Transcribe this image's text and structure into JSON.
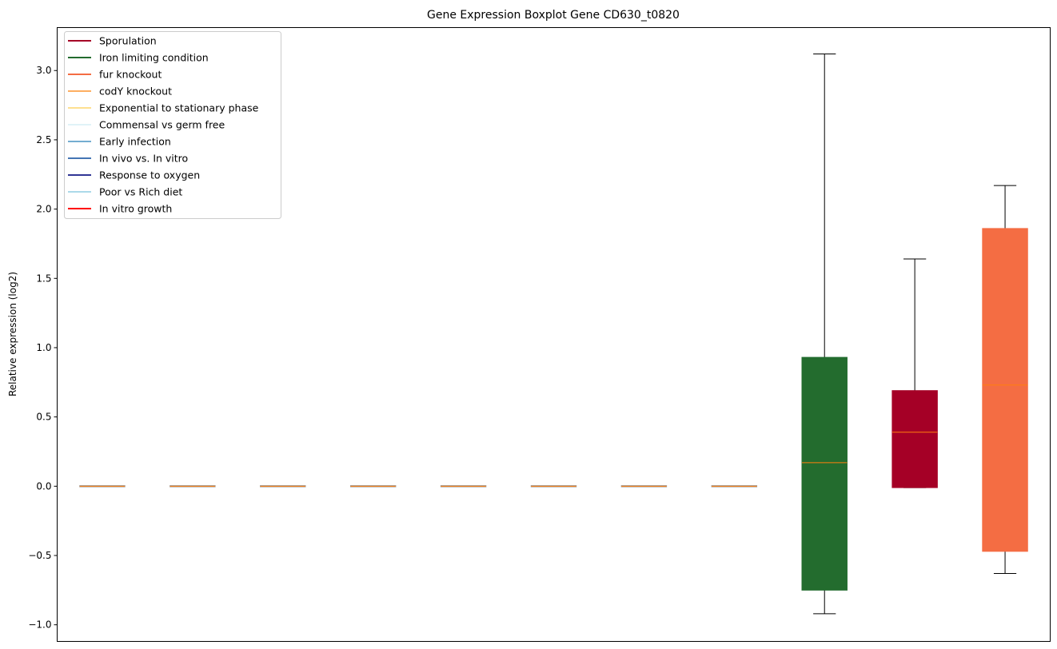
{
  "chart_data": {
    "type": "boxplot",
    "title": "Gene Expression Boxplot Gene CD630_t0820",
    "xlabel": "",
    "ylabel": "Relative expression (log2)",
    "ylim": [
      -1.12,
      3.31
    ],
    "yticks": [
      -1.0,
      -0.5,
      0.0,
      0.5,
      1.0,
      1.5,
      2.0,
      2.5,
      3.0
    ],
    "ytick_labels": [
      "−1.0",
      "−0.5",
      "0.0",
      "0.5",
      "1.0",
      "1.5",
      "2.0",
      "2.5",
      "3.0"
    ],
    "grid": false,
    "legend_placement": "top-left",
    "legend": [
      {
        "label": "Sporulation",
        "color": "#a50026"
      },
      {
        "label": "Iron limiting condition",
        "color": "#236c2e"
      },
      {
        "label": "fur knockout",
        "color": "#f46d43"
      },
      {
        "label": "codY knockout",
        "color": "#fdae61"
      },
      {
        "label": "Exponential to stationary phase",
        "color": "#fee090"
      },
      {
        "label": "Commensal vs germ free",
        "color": "#e0f3f8"
      },
      {
        "label": "Early infection",
        "color": "#74add1"
      },
      {
        "label": "In vivo vs. In vitro",
        "color": "#4575b4"
      },
      {
        "label": "Response to oxygen",
        "color": "#313695"
      },
      {
        "label": "Poor vs Rich diet",
        "color": "#abd9e9"
      },
      {
        "label": "In vitro growth",
        "color": "#ff0000"
      }
    ],
    "median_color": "#ff7f0e",
    "boxes": [
      {
        "position": 1,
        "whislo": 0,
        "q1": 0,
        "med": 0,
        "q3": 0,
        "whishi": 0,
        "color": "#999999"
      },
      {
        "position": 2,
        "whislo": 0,
        "q1": 0,
        "med": 0,
        "q3": 0,
        "whishi": 0,
        "color": "#999999"
      },
      {
        "position": 3,
        "whislo": 0,
        "q1": 0,
        "med": 0,
        "q3": 0,
        "whishi": 0,
        "color": "#999999"
      },
      {
        "position": 4,
        "whislo": 0,
        "q1": 0,
        "med": 0,
        "q3": 0,
        "whishi": 0,
        "color": "#999999"
      },
      {
        "position": 5,
        "whislo": 0,
        "q1": 0,
        "med": 0,
        "q3": 0,
        "whishi": 0,
        "color": "#999999"
      },
      {
        "position": 6,
        "whislo": 0,
        "q1": 0,
        "med": 0,
        "q3": 0,
        "whishi": 0,
        "color": "#999999"
      },
      {
        "position": 7,
        "whislo": 0,
        "q1": 0,
        "med": 0,
        "q3": 0,
        "whishi": 0,
        "color": "#999999"
      },
      {
        "position": 8,
        "whislo": 0,
        "q1": 0,
        "med": 0,
        "q3": 0,
        "whishi": 0,
        "color": "#999999"
      },
      {
        "position": 9,
        "whislo": -0.92,
        "q1": -0.75,
        "med": 0.17,
        "q3": 0.93,
        "whishi": 3.12,
        "color": "#236c2e"
      },
      {
        "position": 10,
        "whislo": -0.01,
        "q1": -0.01,
        "med": 0.39,
        "q3": 0.69,
        "whishi": 1.64,
        "color": "#a50026"
      },
      {
        "position": 11,
        "whislo": -0.63,
        "q1": -0.47,
        "med": 0.73,
        "q3": 1.86,
        "whishi": 2.17,
        "color": "#f46d43"
      }
    ]
  }
}
